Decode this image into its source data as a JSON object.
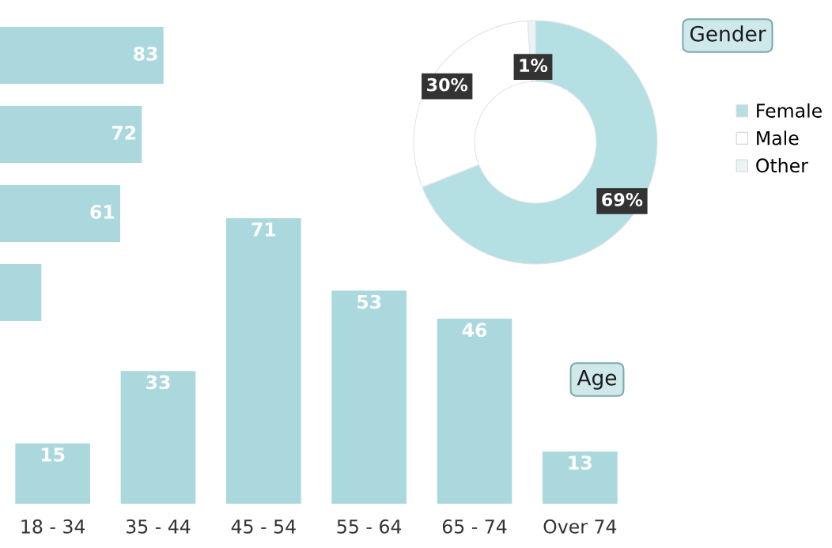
{
  "chart_data": [
    {
      "type": "bar",
      "orientation": "horizontal",
      "categories": [
        null,
        null,
        null,
        null
      ],
      "values": [
        83,
        72,
        61,
        21
      ],
      "value_labels": [
        "83",
        "72",
        "61",
        null
      ],
      "color": "#aad8dc"
    },
    {
      "type": "donut",
      "title": "Gender",
      "categories": [
        "Female",
        "Male",
        "Other"
      ],
      "values": [
        69,
        30,
        1
      ],
      "colors": [
        "#b4dfe3",
        "#ffffff",
        "#eaf4f5"
      ],
      "value_labels": [
        "69%",
        "30%",
        "1%"
      ],
      "legend": "right"
    },
    {
      "type": "bar",
      "title": "Age",
      "categories": [
        "18 - 34",
        "35 - 44",
        "45 - 54",
        "55 - 64",
        "65 - 74",
        "Over 74"
      ],
      "values": [
        15,
        33,
        71,
        53,
        46,
        13
      ],
      "data_labels": true,
      "color": "#aad8dc"
    }
  ]
}
